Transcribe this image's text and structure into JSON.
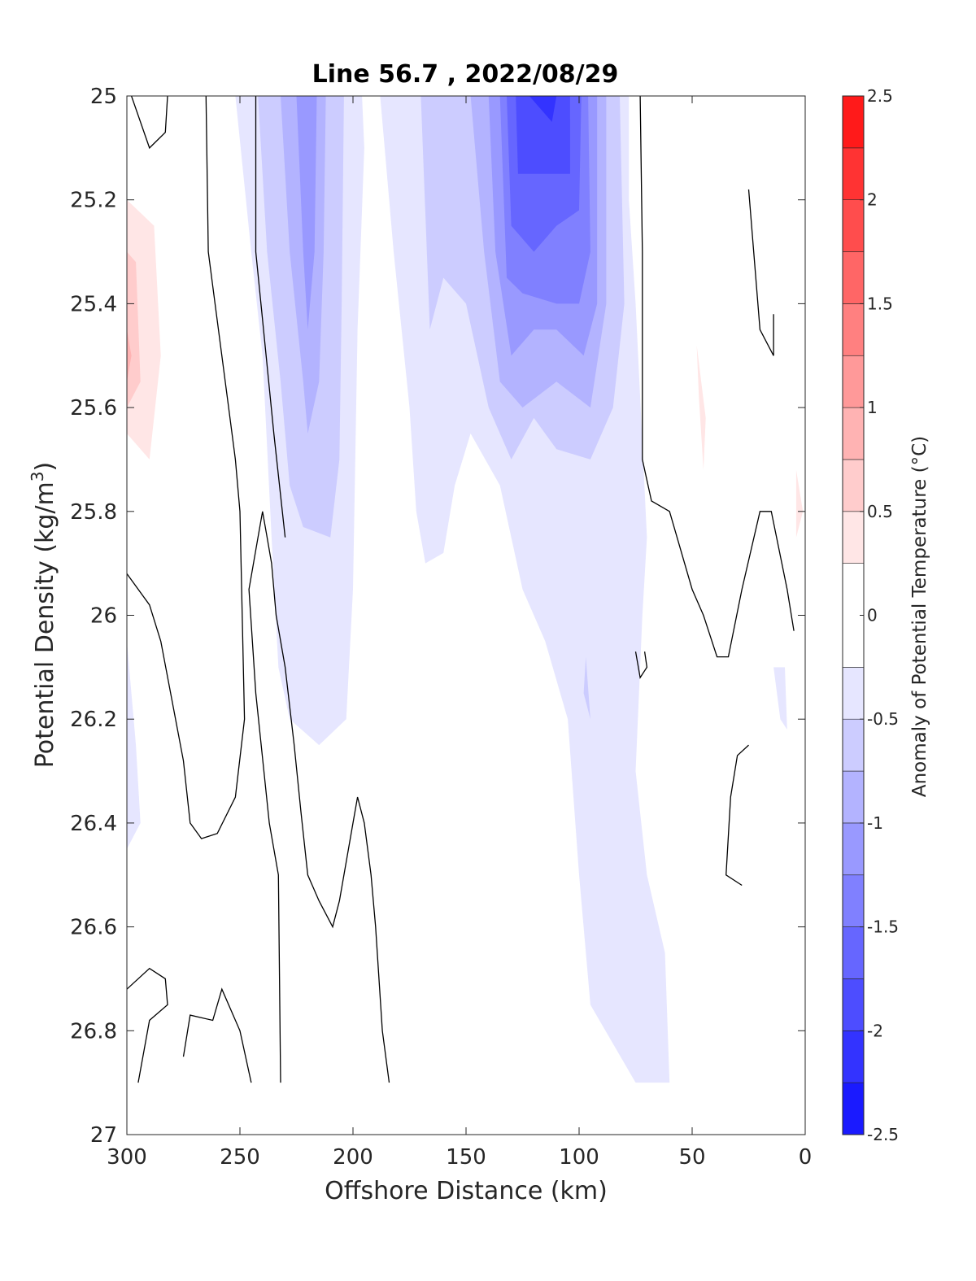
{
  "chart_data": {
    "type": "heatmap",
    "subtype": "filled-contour section",
    "title": "Line 56.7 , 2022/08/29",
    "xlabel": "Offshore Distance (km)",
    "ylabel_main": "Potential Density (kg/m",
    "ylabel_sup": "3",
    "ylabel_close": ")",
    "xlim": [
      300,
      0
    ],
    "ylim": [
      27,
      25
    ],
    "x_reversed": true,
    "y_reversed": true,
    "xticks": [
      300,
      250,
      200,
      150,
      100,
      50,
      0
    ],
    "xtick_labels": [
      "300",
      "250",
      "200",
      "150",
      "100",
      "50",
      "0"
    ],
    "yticks": [
      25,
      25.2,
      25.4,
      25.6,
      25.8,
      26,
      26.2,
      26.4,
      26.6,
      26.8,
      27
    ],
    "ytick_labels": [
      "25",
      "25.2",
      "25.4",
      "25.6",
      "25.8",
      "26",
      "26.2",
      "26.4",
      "26.6",
      "26.8",
      "27"
    ],
    "colorbar": {
      "label": "Anomaly of Potential Temperature (°C)",
      "range": [
        -2.5,
        2.5
      ],
      "ticks": [
        -2.5,
        -2,
        -1.5,
        -1,
        -0.5,
        0,
        0.5,
        1,
        1.5,
        2,
        2.5
      ],
      "tick_labels": [
        "-2.5",
        "-2",
        "-1.5",
        "-1",
        "-0.5",
        "0",
        "0.5",
        "1",
        "1.5",
        "2",
        "2.5"
      ],
      "level_step": 0.25,
      "colors_bottom_to_top": [
        "#0000ff",
        "#1a1aff",
        "#3333ff",
        "#4d4dff",
        "#6666ff",
        "#8080ff",
        "#9999ff",
        "#b3b3ff",
        "#ccccff",
        "#e6e6ff",
        "#ffffff",
        "#ffffff",
        "#ffe6e6",
        "#ffcccc",
        "#ffb3b3",
        "#ff9999",
        "#ff8080",
        "#ff6666",
        "#ff4d4d",
        "#ff3333",
        "#ff1a1a",
        "#ff0000"
      ]
    },
    "grid": false,
    "zero_contour_lines": true,
    "regions": [
      {
        "level": 0.25,
        "points": [
          [
            300,
            25.0
          ],
          [
            280,
            25.0
          ],
          [
            278,
            25.15
          ],
          [
            270,
            25.35
          ],
          [
            263,
            25.7
          ],
          [
            262,
            26.0
          ],
          [
            258,
            26.35
          ],
          [
            268,
            26.43
          ],
          [
            295,
            26.35
          ],
          [
            294,
            26.25
          ],
          [
            282,
            26.0
          ],
          [
            280,
            25.9
          ],
          [
            275,
            25.6
          ],
          [
            280,
            25.35
          ],
          [
            285,
            25.2
          ],
          [
            300,
            25.15
          ]
        ]
      },
      {
        "level": 0.25,
        "points": [
          [
            300,
            25.1
          ],
          [
            284,
            25.1
          ],
          [
            283,
            25.45
          ],
          [
            276,
            25.6
          ],
          [
            270,
            25.82
          ],
          [
            263,
            26.08
          ],
          [
            251,
            25.97
          ],
          [
            240,
            26.02
          ],
          [
            236,
            26.17
          ],
          [
            248,
            26.33
          ],
          [
            262,
            26.41
          ],
          [
            272,
            26.13
          ],
          [
            280,
            26.02
          ],
          [
            287,
            25.95
          ],
          [
            300,
            25.9
          ]
        ]
      },
      {
        "level": 0.5,
        "points": [
          [
            300,
            25.2
          ],
          [
            288,
            25.25
          ],
          [
            285,
            25.5
          ],
          [
            290,
            25.7
          ],
          [
            300,
            25.65
          ]
        ]
      },
      {
        "level": 0.75,
        "points": [
          [
            300,
            25.3
          ],
          [
            296,
            25.32
          ],
          [
            294,
            25.55
          ],
          [
            300,
            25.6
          ]
        ]
      },
      {
        "level": 1.0,
        "points": [
          [
            300,
            25.45
          ],
          [
            298,
            25.5
          ],
          [
            300,
            25.55
          ]
        ]
      },
      {
        "level": 0.25,
        "points": [
          [
            67,
            25.0
          ],
          [
            64,
            25.15
          ],
          [
            60,
            25.3
          ],
          [
            62,
            25.7
          ],
          [
            50,
            25.85
          ],
          [
            34,
            25.83
          ],
          [
            33,
            25.57
          ],
          [
            25,
            25.5
          ],
          [
            20,
            25.45
          ],
          [
            30,
            25.35
          ],
          [
            45,
            25.25
          ],
          [
            55,
            25.1
          ],
          [
            62,
            25.0
          ]
        ]
      },
      {
        "level": 0.5,
        "points": [
          [
            48,
            25.48
          ],
          [
            47,
            25.58
          ],
          [
            45,
            25.72
          ],
          [
            44,
            25.62
          ]
        ]
      },
      {
        "level": 0.25,
        "points": [
          [
            10,
            25.62
          ],
          [
            5,
            25.66
          ],
          [
            0,
            25.8
          ],
          [
            5,
            25.88
          ],
          [
            8,
            25.92
          ],
          [
            9,
            25.7
          ]
        ]
      },
      {
        "level": 0.5,
        "points": [
          [
            4,
            25.72
          ],
          [
            1,
            25.8
          ],
          [
            4,
            25.85
          ]
        ]
      },
      {
        "level": -0.25,
        "points": [
          [
            252,
            25.0
          ],
          [
            245,
            25.3
          ],
          [
            240,
            25.5
          ],
          [
            236,
            25.85
          ],
          [
            233,
            26.1
          ],
          [
            228,
            26.2
          ],
          [
            215,
            26.25
          ],
          [
            203,
            26.2
          ],
          [
            200,
            25.95
          ],
          [
            198,
            25.45
          ],
          [
            195,
            25.1
          ],
          [
            196,
            25.0
          ]
        ]
      },
      {
        "level": -0.25,
        "points": [
          [
            188,
            25.0
          ],
          [
            182,
            25.3
          ],
          [
            175,
            25.6
          ],
          [
            172,
            25.8
          ],
          [
            168,
            25.9
          ],
          [
            160,
            25.88
          ],
          [
            155,
            25.75
          ],
          [
            148,
            25.65
          ],
          [
            135,
            25.75
          ],
          [
            125,
            25.95
          ],
          [
            115,
            26.05
          ],
          [
            105,
            26.2
          ],
          [
            100,
            26.5
          ],
          [
            95,
            26.75
          ],
          [
            75,
            26.9
          ],
          [
            60,
            26.9
          ],
          [
            62,
            26.65
          ],
          [
            70,
            26.5
          ],
          [
            75,
            26.3
          ],
          [
            72,
            26.0
          ],
          [
            70,
            25.85
          ],
          [
            75,
            25.4
          ],
          [
            78,
            25.2
          ],
          [
            78,
            25.0
          ]
        ]
      },
      {
        "level": -0.25,
        "points": [
          [
            300,
            26.05
          ],
          [
            296,
            26.25
          ],
          [
            294,
            26.4
          ],
          [
            300,
            26.45
          ]
        ]
      },
      {
        "level": -0.25,
        "points": [
          [
            14,
            26.1
          ],
          [
            9,
            26.1
          ],
          [
            8,
            26.22
          ],
          [
            11,
            26.2
          ]
        ]
      },
      {
        "level": -0.5,
        "points": [
          [
            242,
            25.0
          ],
          [
            238,
            25.3
          ],
          [
            232,
            25.55
          ],
          [
            228,
            25.75
          ],
          [
            222,
            25.83
          ],
          [
            210,
            25.85
          ],
          [
            206,
            25.7
          ],
          [
            205,
            25.4
          ],
          [
            204,
            25.0
          ]
        ]
      },
      {
        "level": -0.5,
        "points": [
          [
            170,
            25.0
          ],
          [
            166,
            25.45
          ],
          [
            160,
            25.35
          ],
          [
            150,
            25.4
          ],
          [
            140,
            25.6
          ],
          [
            130,
            25.7
          ],
          [
            120,
            25.62
          ],
          [
            110,
            25.68
          ],
          [
            95,
            25.7
          ],
          [
            85,
            25.6
          ],
          [
            80,
            25.4
          ],
          [
            82,
            25.0
          ]
        ]
      },
      {
        "level": -0.75,
        "points": [
          [
            232,
            25.0
          ],
          [
            228,
            25.3
          ],
          [
            222,
            25.55
          ],
          [
            220,
            25.65
          ],
          [
            215,
            25.55
          ],
          [
            213,
            25.3
          ],
          [
            212,
            25.0
          ]
        ]
      },
      {
        "level": -0.75,
        "points": [
          [
            148,
            25.0
          ],
          [
            142,
            25.3
          ],
          [
            135,
            25.55
          ],
          [
            125,
            25.6
          ],
          [
            110,
            25.55
          ],
          [
            95,
            25.6
          ],
          [
            88,
            25.4
          ],
          [
            88,
            25.0
          ]
        ]
      },
      {
        "level": -1.0,
        "points": [
          [
            225,
            25.0
          ],
          [
            222,
            25.3
          ],
          [
            220,
            25.45
          ],
          [
            217,
            25.3
          ],
          [
            216,
            25.0
          ]
        ]
      },
      {
        "level": -1.0,
        "points": [
          [
            140,
            25.0
          ],
          [
            137,
            25.3
          ],
          [
            130,
            25.5
          ],
          [
            120,
            25.45
          ],
          [
            110,
            25.45
          ],
          [
            98,
            25.5
          ],
          [
            92,
            25.4
          ],
          [
            92,
            25.0
          ]
        ]
      },
      {
        "level": -1.25,
        "points": [
          [
            135,
            25.0
          ],
          [
            132,
            25.35
          ],
          [
            125,
            25.38
          ],
          [
            110,
            25.4
          ],
          [
            100,
            25.4
          ],
          [
            95,
            25.3
          ],
          [
            96,
            25.0
          ]
        ]
      },
      {
        "level": -1.5,
        "points": [
          [
            132,
            25.0
          ],
          [
            130,
            25.25
          ],
          [
            120,
            25.3
          ],
          [
            110,
            25.25
          ],
          [
            100,
            25.22
          ],
          [
            99,
            25.0
          ]
        ]
      },
      {
        "level": -1.75,
        "points": [
          [
            128,
            25.0
          ],
          [
            127,
            25.15
          ],
          [
            115,
            25.15
          ],
          [
            104,
            25.15
          ],
          [
            104,
            25.0
          ]
        ]
      },
      {
        "level": -2.0,
        "points": [
          [
            122,
            25.0
          ],
          [
            112,
            25.05
          ],
          [
            110,
            25.0
          ]
        ]
      },
      {
        "level": -0.5,
        "points": [
          [
            97,
            26.08
          ],
          [
            95,
            26.2
          ],
          [
            98,
            26.15
          ]
        ]
      }
    ],
    "contour_lines": [
      [
        [
          298,
          25.0
        ],
        [
          290,
          25.1
        ],
        [
          283,
          25.07
        ],
        [
          282,
          25.0
        ]
      ],
      [
        [
          265,
          25.0
        ],
        [
          264,
          25.3
        ],
        [
          261,
          25.4
        ],
        [
          255,
          25.6
        ],
        [
          252,
          25.7
        ],
        [
          250,
          25.8
        ],
        [
          248,
          26.2
        ],
        [
          252,
          26.35
        ],
        [
          260,
          26.42
        ],
        [
          267,
          26.43
        ],
        [
          272,
          26.4
        ],
        [
          275,
          26.28
        ],
        [
          285,
          26.05
        ],
        [
          290,
          25.98
        ],
        [
          300,
          25.92
        ]
      ],
      [
        [
          243,
          25.0
        ],
        [
          243,
          25.3
        ],
        [
          235,
          25.65
        ],
        [
          230,
          25.85
        ]
      ],
      [
        [
          300,
          26.72
        ],
        [
          290,
          26.68
        ],
        [
          283,
          26.7
        ],
        [
          282,
          26.75
        ],
        [
          290,
          26.78
        ],
        [
          295,
          26.9
        ]
      ],
      [
        [
          275,
          26.85
        ],
        [
          272,
          26.77
        ],
        [
          262,
          26.78
        ],
        [
          258,
          26.72
        ],
        [
          250,
          26.8
        ],
        [
          245,
          26.9
        ]
      ],
      [
        [
          184,
          26.9
        ],
        [
          187,
          26.8
        ],
        [
          190,
          26.6
        ],
        [
          192,
          26.5
        ],
        [
          195,
          26.4
        ],
        [
          198,
          26.35
        ],
        [
          200,
          26.4
        ],
        [
          206,
          26.55
        ],
        [
          209,
          26.6
        ],
        [
          215,
          26.55
        ],
        [
          220,
          26.5
        ],
        [
          223,
          26.38
        ],
        [
          226,
          26.25
        ],
        [
          230,
          26.1
        ],
        [
          234,
          26.0
        ],
        [
          236,
          25.9
        ],
        [
          238,
          25.85
        ],
        [
          240,
          25.8
        ],
        [
          242,
          25.85
        ],
        [
          246,
          25.95
        ],
        [
          243,
          26.15
        ],
        [
          237,
          26.4
        ],
        [
          233,
          26.5
        ],
        [
          232,
          26.9
        ]
      ],
      [
        [
          73,
          25.0
        ],
        [
          72,
          25.3
        ],
        [
          72,
          25.7
        ],
        [
          68,
          25.78
        ],
        [
          60,
          25.8
        ],
        [
          50,
          25.95
        ],
        [
          45,
          26.0
        ],
        [
          39,
          26.08
        ],
        [
          34,
          26.08
        ],
        [
          28,
          25.95
        ],
        [
          20,
          25.8
        ],
        [
          15,
          25.8
        ],
        [
          8,
          25.95
        ],
        [
          5,
          26.03
        ]
      ],
      [
        [
          25,
          25.18
        ],
        [
          20,
          25.45
        ],
        [
          14,
          25.5
        ],
        [
          14,
          25.42
        ]
      ],
      [
        [
          75,
          26.07
        ],
        [
          73,
          26.12
        ],
        [
          70,
          26.1
        ],
        [
          71,
          26.07
        ]
      ],
      [
        [
          25,
          26.25
        ],
        [
          30,
          26.27
        ],
        [
          33,
          26.35
        ],
        [
          35,
          26.5
        ],
        [
          28,
          26.52
        ]
      ]
    ]
  }
}
